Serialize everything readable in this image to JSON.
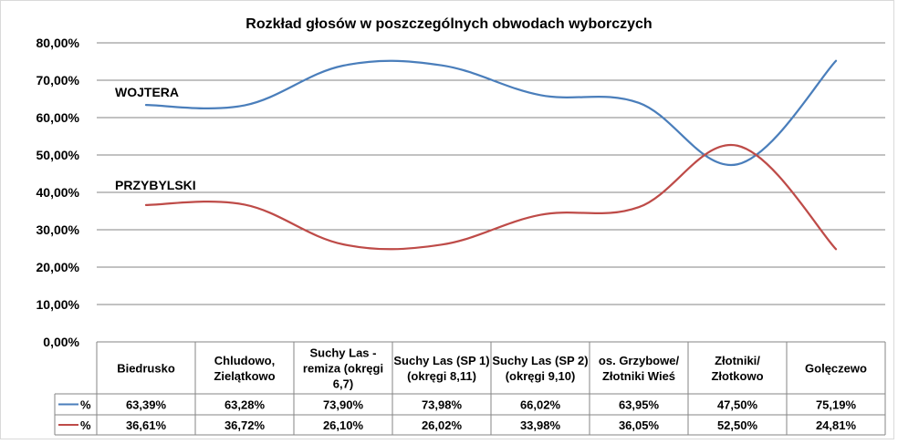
{
  "colors": {
    "series_blue": "#4A7EBB",
    "series_red": "#BE4B48",
    "grid": "#868686",
    "outer_border": "#D9D9D9"
  },
  "chart_data": {
    "type": "line",
    "title": "Rozkład głosów w poszczególnych obwodach  wyborczych",
    "xlabel": "",
    "ylabel": "",
    "ylim": [
      0,
      0.8
    ],
    "y_ticks": [
      "0,00%",
      "10,00%",
      "20,00%",
      "30,00%",
      "40,00%",
      "50,00%",
      "60,00%",
      "70,00%",
      "80,00%"
    ],
    "grid": true,
    "smooth": true,
    "categories": [
      [
        "Biedrusko"
      ],
      [
        "Chludowo,",
        "Zielątkowo"
      ],
      [
        "Suchy Las -",
        "remiza (okręgi",
        "6,7)"
      ],
      [
        "Suchy Las (SP 1)",
        "(okręgi 8,11)"
      ],
      [
        "Suchy Las (SP 2)",
        "(okręgi 9,10)"
      ],
      [
        "os. Grzybowe/",
        "Złotniki Wieś"
      ],
      [
        "Złotniki/",
        "Złotkowo"
      ],
      [
        "Golęczewo"
      ]
    ],
    "series": [
      {
        "name": "%",
        "label": "WOJTERA",
        "color": "#4A7EBB",
        "values": [
          0.6339,
          0.6328,
          0.739,
          0.7398,
          0.6602,
          0.6395,
          0.475,
          0.7519
        ],
        "value_labels": [
          "63,39%",
          "63,28%",
          "73,90%",
          "73,98%",
          "66,02%",
          "63,95%",
          "47,50%",
          "75,19%"
        ]
      },
      {
        "name": "%",
        "label": "PRZYBYLSKI",
        "color": "#BE4B48",
        "values": [
          0.3661,
          0.3672,
          0.261,
          0.2602,
          0.3398,
          0.3605,
          0.525,
          0.2481
        ],
        "value_labels": [
          "36,61%",
          "36,72%",
          "26,10%",
          "26,02%",
          "33,98%",
          "36,05%",
          "52,50%",
          "24,81%"
        ]
      }
    ]
  }
}
